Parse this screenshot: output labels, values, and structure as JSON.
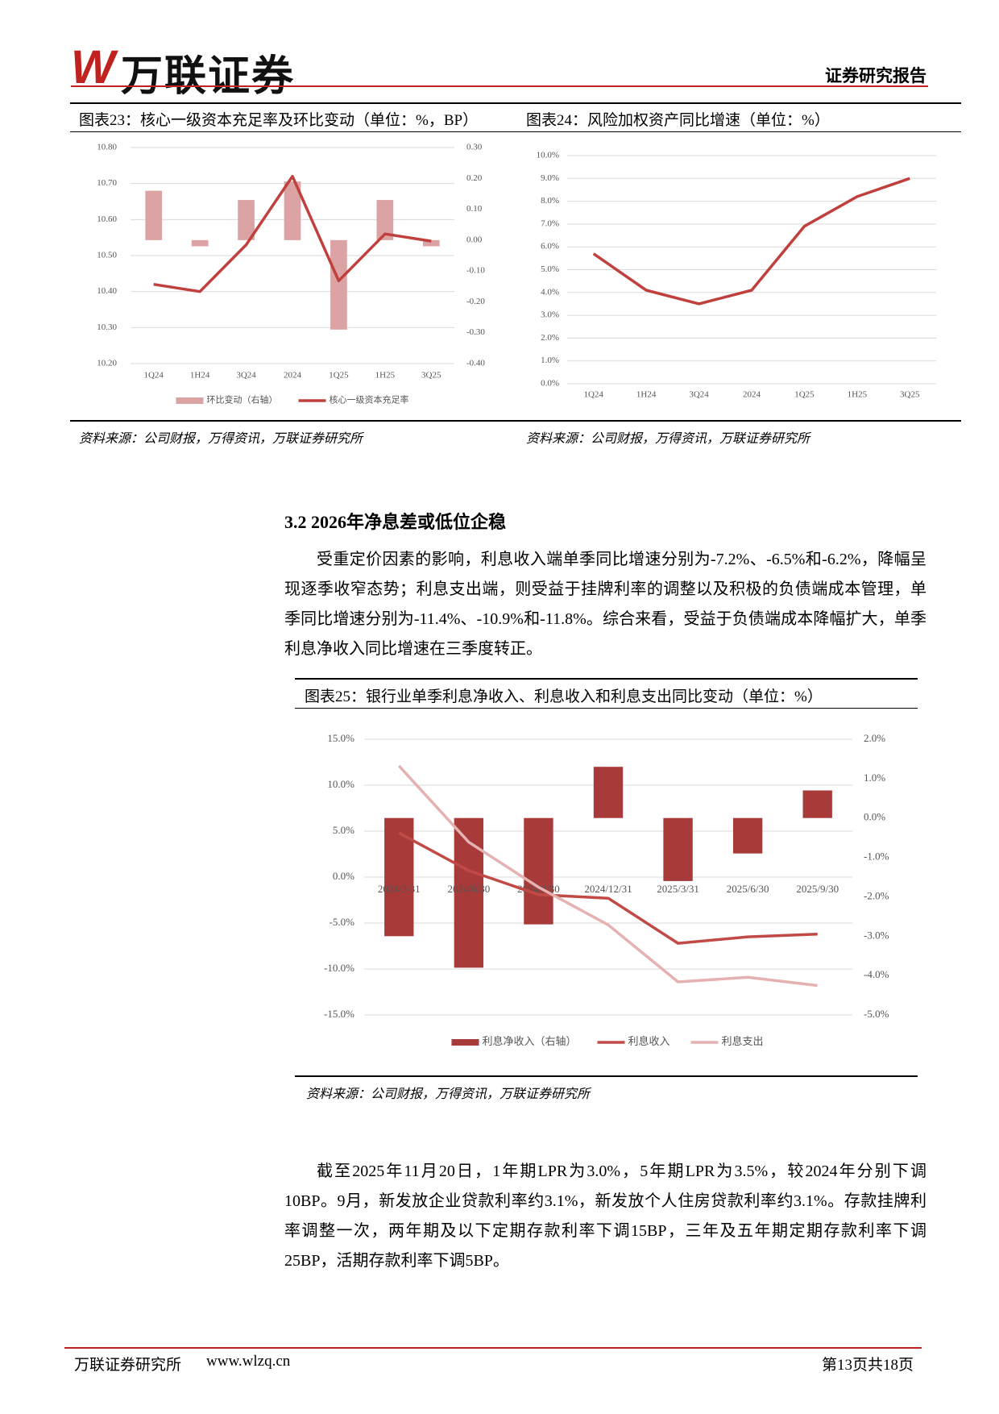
{
  "header": {
    "logo_mark": "W",
    "logo": "万联证券",
    "label": "证券研究报告"
  },
  "chart_data": [
    {
      "type": "combo",
      "title": "图表23：核心一级资本充足率及环比变动（单位：%，BP）",
      "source": "资料来源：公司财报，万得资讯，万联证券研究所",
      "categories": [
        "1Q24",
        "1H24",
        "3Q24",
        "2024",
        "1Q25",
        "1H25",
        "3Q25"
      ],
      "series": [
        {
          "name": "环比变动（右轴）",
          "type": "bar",
          "axis": "y2",
          "color": "#dba3a3",
          "values": [
            0.16,
            -0.02,
            0.13,
            0.19,
            -0.29,
            0.13,
            -0.02
          ]
        },
        {
          "name": "核心一级资本充足率",
          "type": "line",
          "color": "#c0403d",
          "values": [
            10.42,
            10.4,
            10.53,
            10.72,
            10.43,
            10.56,
            10.54
          ]
        }
      ],
      "ylim": [
        10.2,
        10.8
      ],
      "yticks": [
        {
          "value": 10.2,
          "label": "10.20"
        },
        {
          "value": 10.3,
          "label": "10.30"
        },
        {
          "value": 10.4,
          "label": "10.40"
        },
        {
          "value": 10.5,
          "label": "10.50"
        },
        {
          "value": 10.6,
          "label": "10.60"
        },
        {
          "value": 10.7,
          "label": "10.70"
        },
        {
          "value": 10.8,
          "label": "10.80"
        }
      ],
      "y2lim": [
        -0.4,
        0.3
      ],
      "y2ticks": [
        {
          "value": -0.4,
          "label": "-0.40"
        },
        {
          "value": -0.3,
          "label": "-0.30"
        },
        {
          "value": -0.2,
          "label": "-0.20"
        },
        {
          "value": -0.1,
          "label": "-0.10"
        },
        {
          "value": 0,
          "label": "0.00"
        },
        {
          "value": 0.1,
          "label": "0.10"
        },
        {
          "value": 0.2,
          "label": "0.20"
        },
        {
          "value": 0.3,
          "label": "0.30"
        }
      ],
      "grid": true
    },
    {
      "type": "line",
      "title": "图表24：风险加权资产同比增速（单位：%）",
      "source": "资料来源：公司财报，万得资讯，万联证券研究所",
      "categories": [
        "1Q24",
        "1H24",
        "3Q24",
        "2024",
        "1Q25",
        "1H25",
        "3Q25"
      ],
      "series": [
        {
          "type": "line",
          "color": "#c0403d",
          "values": [
            5.7,
            4.1,
            3.5,
            4.1,
            6.9,
            8.2,
            9.0
          ]
        }
      ],
      "ylim": [
        0,
        10
      ],
      "yticks": [
        {
          "value": 0,
          "label": "0.0%"
        },
        {
          "value": 1,
          "label": "1.0%"
        },
        {
          "value": 2,
          "label": "2.0%"
        },
        {
          "value": 3,
          "label": "3.0%"
        },
        {
          "value": 4,
          "label": "4.0%"
        },
        {
          "value": 5,
          "label": "5.0%"
        },
        {
          "value": 6,
          "label": "6.0%"
        },
        {
          "value": 7,
          "label": "7.0%"
        },
        {
          "value": 8,
          "label": "8.0%"
        },
        {
          "value": 9,
          "label": "9.0%"
        },
        {
          "value": 10,
          "label": "10.0%"
        }
      ],
      "grid": true
    },
    {
      "type": "combo",
      "title": "图表25：银行业单季利息净收入、利息收入和利息支出同比变动（单位：%）",
      "source": "资料来源：公司财报，万得资讯，万联证券研究所",
      "categories": [
        "2024/3/31",
        "2024/6/30",
        "2024/9/30",
        "2024/12/31",
        "2025/3/31",
        "2025/6/30",
        "2025/9/30"
      ],
      "series": [
        {
          "name": "利息净收入（右轴）",
          "type": "bar",
          "axis": "y2",
          "color": "#a83a3a",
          "values": [
            -3.0,
            -3.8,
            -2.7,
            1.3,
            -1.6,
            -0.9,
            0.7
          ]
        },
        {
          "name": "利息收入",
          "type": "line",
          "color": "#c24a46",
          "values": [
            4.8,
            0.7,
            -1.9,
            -2.3,
            -7.2,
            -6.5,
            -6.2
          ]
        },
        {
          "name": "利息支出",
          "type": "line",
          "color": "#e5b1b1",
          "values": [
            12.1,
            3.8,
            -1.1,
            -5.2,
            -11.4,
            -10.9,
            -11.8
          ]
        }
      ],
      "ylim": [
        -15,
        15
      ],
      "yticks": [
        {
          "value": -15,
          "label": "-15.0%"
        },
        {
          "value": -10,
          "label": "-10.0%"
        },
        {
          "value": -5,
          "label": "-5.0%"
        },
        {
          "value": 0,
          "label": "0.0%"
        },
        {
          "value": 5,
          "label": "5.0%"
        },
        {
          "value": 10,
          "label": "10.0%"
        },
        {
          "value": 15,
          "label": "15.0%"
        }
      ],
      "y2lim": [
        -5,
        2
      ],
      "y2ticks": [
        {
          "value": -5,
          "label": "-5.0%"
        },
        {
          "value": -4,
          "label": "-4.0%"
        },
        {
          "value": -3,
          "label": "-3.0%"
        },
        {
          "value": -2,
          "label": "-2.0%"
        },
        {
          "value": -1,
          "label": "-1.0%"
        },
        {
          "value": 0,
          "label": "0.0%"
        },
        {
          "value": 1,
          "label": "1.0%"
        },
        {
          "value": 2,
          "label": "2.0%"
        }
      ],
      "grid": true
    }
  ],
  "section": {
    "heading": "3.2 2026年净息差或低位企稳"
  },
  "paragraphs": [
    "受重定价因素的影响，利息收入端单季同比增速分别为-7.2%、-6.5%和-6.2%，降幅呈现逐季收窄态势；利息支出端，则受益于挂牌利率的调整以及积极的负债端成本管理，单季同比增速分别为-11.4%、-10.9%和-11.8%。综合来看，受益于负债端成本降幅扩大，单季利息净收入同比增速在三季度转正。",
    "截至2025年11月20日，1年期LPR为3.0%，5年期LPR为3.5%，较2024年分别下调10BP。9月，新发放企业贷款利率约3.1%，新发放个人住房贷款利率约3.1%。存款挂牌利率调整一次，两年期及以下定期存款利率下调15BP，三年及五年期定期存款利率下调25BP，活期存款利率下调5BP。"
  ],
  "footer": {
    "org": "万联证券研究所",
    "url": "www.wlzq.cn",
    "page": "第13页共18页"
  }
}
